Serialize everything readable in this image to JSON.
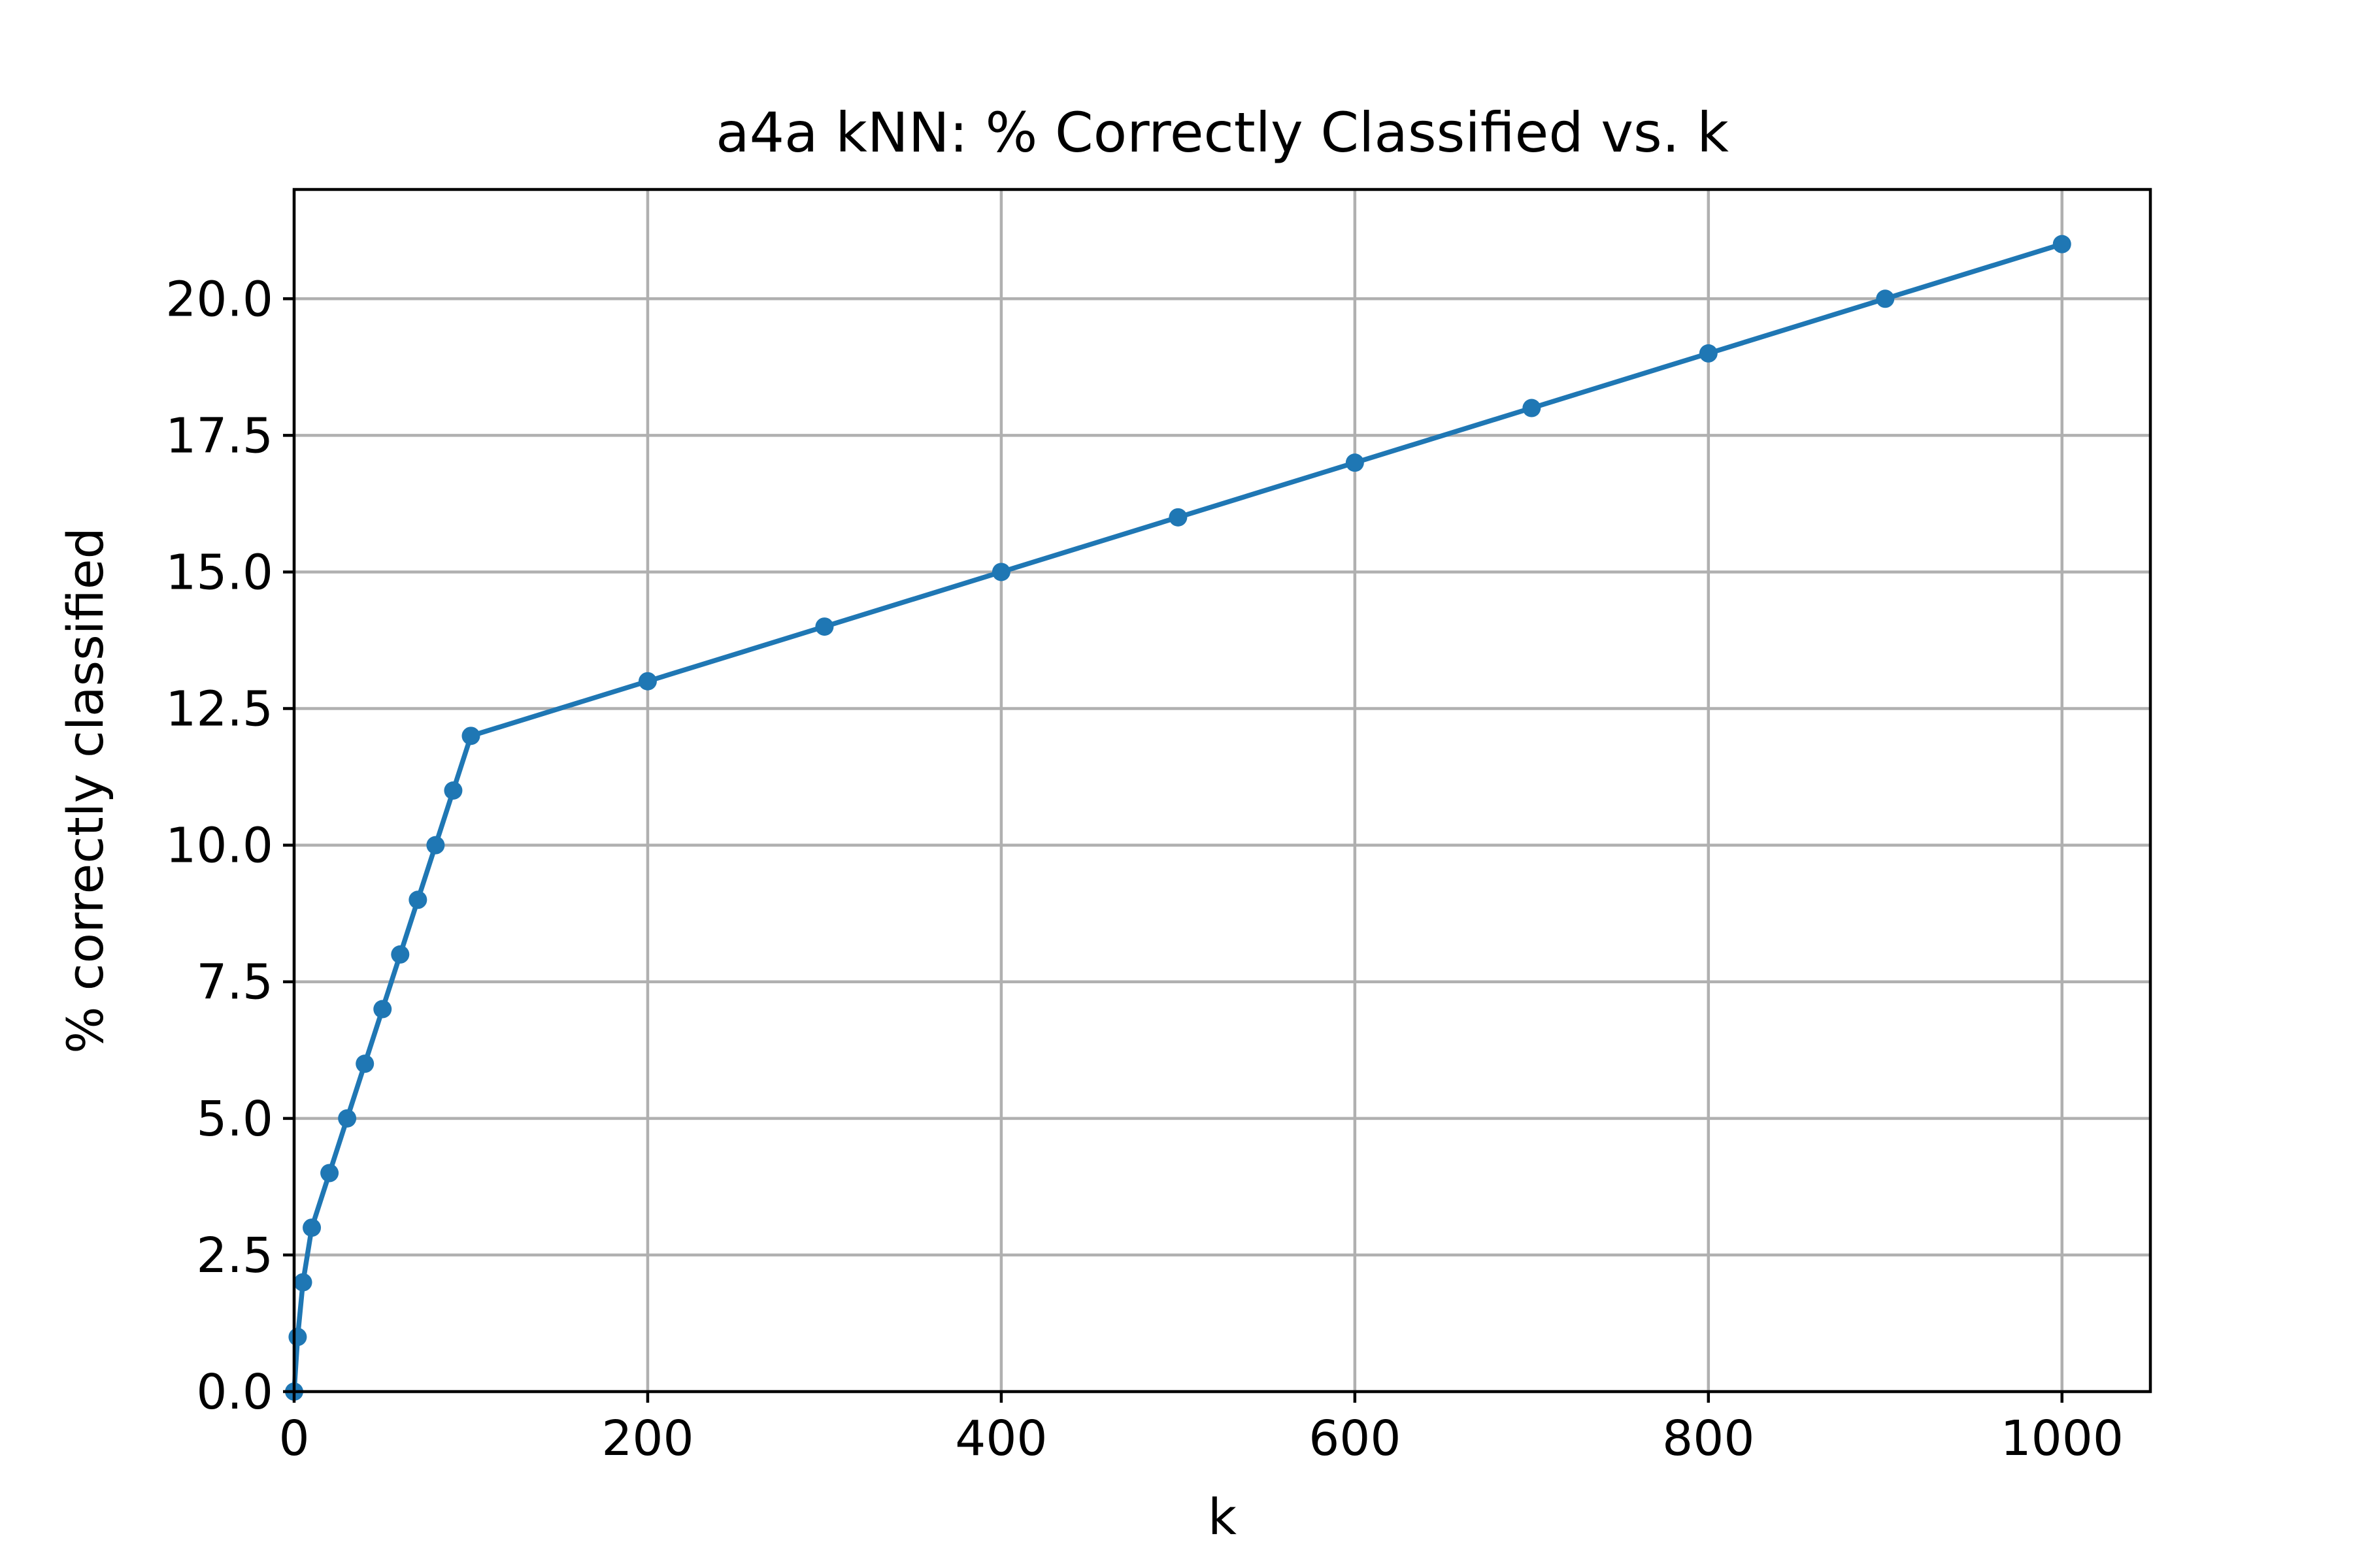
{
  "chart_data": {
    "type": "line",
    "title": "a4a kNN: % Correctly Classified vs. k",
    "xlabel": "k",
    "ylabel": "% correctly classified",
    "xlim": [
      0,
      1050
    ],
    "ylim": [
      0,
      22
    ],
    "x_ticks": [
      0,
      200,
      400,
      600,
      800,
      1000
    ],
    "x_tick_labels": [
      "0",
      "200",
      "400",
      "600",
      "800",
      "1000"
    ],
    "y_ticks": [
      0,
      2.5,
      5,
      7.5,
      10,
      12.5,
      15,
      17.5,
      20
    ],
    "y_tick_labels": [
      "0.0",
      "2.5",
      "5.0",
      "7.5",
      "10.0",
      "12.5",
      "15.0",
      "17.5",
      "20.0"
    ],
    "grid": true,
    "series": [
      {
        "name": "a4a kNN",
        "color": "#1f77b4",
        "marker": "dot",
        "x": [
          0,
          2,
          5,
          10,
          20,
          30,
          40,
          50,
          60,
          70,
          80,
          90,
          100,
          200,
          300,
          400,
          500,
          600,
          700,
          800,
          900,
          1000
        ],
        "y": [
          0,
          1,
          2,
          3,
          4,
          5,
          6,
          7,
          8,
          9,
          10,
          11,
          12,
          13,
          14,
          15,
          16,
          17,
          18,
          19,
          20,
          21
        ]
      }
    ]
  }
}
